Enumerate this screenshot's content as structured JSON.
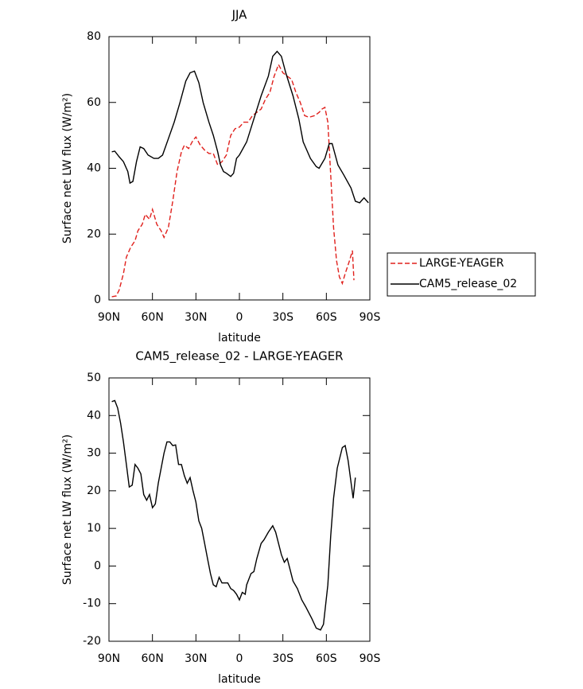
{
  "chart_data": [
    {
      "type": "line",
      "title": "JJA",
      "xlabel": "latitude",
      "ylabel": "Surface net LW flux (W/m²)",
      "xlim": [
        90,
        -90
      ],
      "xticks": [
        {
          "value": 90,
          "label": "90N"
        },
        {
          "value": 60,
          "label": "60N"
        },
        {
          "value": 30,
          "label": "30N"
        },
        0,
        {
          "value": -30,
          "label": "30S"
        },
        {
          "value": -60,
          "label": "60S"
        },
        {
          "value": -90,
          "label": "90S"
        }
      ],
      "ylim": [
        0,
        80
      ],
      "yticks": [
        0,
        20,
        40,
        60,
        80
      ],
      "legend": "right",
      "series": [
        {
          "name": "LARGE-YEAGER",
          "color": "#e0201c",
          "line_style": "dashed",
          "x": [
            88,
            85,
            83,
            80,
            78,
            75,
            72,
            70,
            67,
            65,
            62,
            60,
            57,
            54,
            52,
            49,
            46,
            43,
            40,
            38,
            35,
            32,
            30,
            27,
            24,
            21,
            18,
            15,
            12,
            9,
            6,
            3,
            0,
            -3,
            -6,
            -9,
            -12,
            -15,
            -18,
            -21,
            -24,
            -27,
            -30,
            -33,
            -36,
            -39,
            -42,
            -45,
            -48,
            -52,
            -55,
            -57,
            -59,
            -61,
            -63,
            -65,
            -67,
            -69,
            -71,
            -73,
            -76,
            -78,
            -79
          ],
          "values": [
            1,
            1.2,
            3,
            8,
            13,
            16,
            18,
            21,
            23,
            26,
            24.5,
            27.5,
            23,
            21,
            19,
            22,
            30,
            39,
            45,
            47,
            46,
            48.5,
            49.5,
            47,
            45.5,
            44.5,
            44.5,
            41,
            42,
            44,
            50,
            52,
            52.5,
            54,
            54,
            56,
            57,
            58,
            61,
            63,
            68,
            71.5,
            69,
            68,
            67,
            63,
            60,
            56,
            55.5,
            56,
            57,
            58,
            58.5,
            54,
            38,
            22,
            12,
            7,
            5,
            8,
            12,
            15,
            6
          ]
        },
        {
          "name": "CAM5_release_02",
          "color": "#000000",
          "line_style": "solid",
          "x": [
            88,
            86,
            83,
            80,
            77,
            75.5,
            73.5,
            71,
            68.5,
            66,
            63,
            59,
            56,
            53,
            49,
            45,
            41,
            37,
            34,
            31,
            28,
            25,
            21,
            18,
            15,
            13,
            11,
            9,
            6,
            4,
            2,
            0,
            -5,
            -10,
            -15,
            -20,
            -23,
            -26,
            -29,
            -32,
            -37,
            -41,
            -44,
            -49,
            -53,
            -55,
            -59,
            -62,
            -64,
            -68,
            -72,
            -77,
            -80,
            -83,
            -86,
            -89
          ],
          "values": [
            45,
            45.2,
            43.5,
            42,
            39,
            35.5,
            36,
            42,
            46.5,
            46,
            44,
            43,
            43,
            44,
            49,
            54,
            60,
            66.5,
            69,
            69.5,
            66,
            60,
            54,
            50,
            45,
            41,
            39,
            38.5,
            37.5,
            38.5,
            43,
            44,
            48,
            55,
            62,
            68,
            74,
            75.5,
            74,
            69,
            62,
            55,
            48,
            43,
            40.5,
            40,
            43,
            47.5,
            47.5,
            41,
            38,
            34,
            30,
            29.5,
            31,
            29.5
          ]
        }
      ]
    },
    {
      "type": "line",
      "title": "CAM5_release_02 - LARGE-YEAGER",
      "xlabel": "latitude",
      "ylabel": "Surface net LW flux (W/m²)",
      "xlim": [
        90,
        -90
      ],
      "xticks": [
        {
          "value": 90,
          "label": "90N"
        },
        {
          "value": 60,
          "label": "60N"
        },
        {
          "value": 30,
          "label": "30N"
        },
        0,
        {
          "value": -30,
          "label": "30S"
        },
        {
          "value": -60,
          "label": "60S"
        },
        {
          "value": -90,
          "label": "90S"
        }
      ],
      "ylim": [
        -20,
        50
      ],
      "yticks": [
        -20,
        -10,
        0,
        10,
        20,
        30,
        40,
        50
      ],
      "series": [
        {
          "color": "#000000",
          "line_style": "solid",
          "x": [
            88,
            86,
            84,
            82,
            80,
            78,
            76,
            74,
            72,
            70,
            68,
            66,
            64,
            62,
            60,
            58,
            56,
            54,
            52,
            50,
            48,
            46,
            44,
            42,
            40,
            38,
            36,
            34,
            32,
            30,
            28,
            26,
            24,
            22,
            20,
            18,
            16,
            14,
            12,
            10,
            8,
            6,
            4,
            2,
            0,
            -2,
            -4,
            -5,
            -8,
            -10,
            -12,
            -15,
            -17,
            -20,
            -23,
            -25,
            -27,
            -29,
            -31,
            -33,
            -35,
            -37,
            -40,
            -43,
            -46,
            -50,
            -53,
            -56,
            -58,
            -61,
            -63,
            -65,
            -67.5,
            -71,
            -73,
            -75,
            -78.5,
            -80
          ],
          "values": [
            43.7,
            44,
            42,
            38,
            33,
            27,
            21,
            21.5,
            27,
            26,
            24.5,
            19,
            17.5,
            19,
            15.5,
            16.5,
            22,
            26,
            30,
            33,
            33,
            32,
            32.2,
            27,
            27,
            24,
            22,
            23.5,
            20,
            17,
            12,
            10,
            6,
            2,
            -2,
            -5,
            -5.5,
            -3,
            -4.5,
            -4.5,
            -4.5,
            -6,
            -6.5,
            -7.5,
            -9,
            -7,
            -7.5,
            -5,
            -2,
            -1.5,
            2,
            6,
            7,
            9,
            10.7,
            9,
            6,
            3,
            1,
            2,
            -1,
            -4,
            -6,
            -9,
            -11,
            -14,
            -16.5,
            -17,
            -15.5,
            -5,
            8,
            18,
            26,
            31.5,
            32,
            28,
            18,
            23.5
          ]
        }
      ]
    }
  ]
}
